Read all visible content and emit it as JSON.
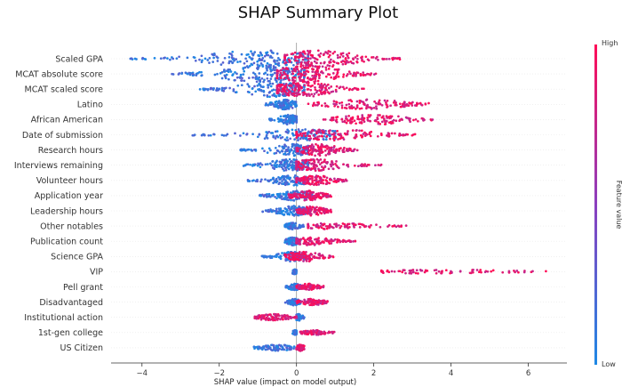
{
  "chart_data": {
    "type": "scatter",
    "subtype": "shap-beeswarm",
    "title": "SHAP Summary Plot",
    "xlabel": "SHAP value (impact on model output)",
    "xlim": [
      -4.8,
      7.0
    ],
    "xticks": [
      -4,
      -2,
      0,
      2,
      4,
      6
    ],
    "colorbar": {
      "label": "Feature value",
      "high": "High",
      "low": "Low"
    },
    "colors": {
      "low": "#1e88e5",
      "mid": "#8b3fbf",
      "high": "#ff0d57",
      "axis": "#333333",
      "zero": "#999999",
      "grid": "#e8e8e8"
    },
    "features": [
      {
        "name": "Scaled GPA",
        "low_range": [
          -4.3,
          0.3
        ],
        "high_range": [
          -0.3,
          2.7
        ],
        "low_peak": -0.9,
        "high_peak": 0.6,
        "spread": 9
      },
      {
        "name": "MCAT absolute score",
        "low_range": [
          -3.3,
          0.2
        ],
        "high_range": [
          -0.5,
          2.1
        ],
        "low_peak": -0.9,
        "high_peak": 0.3,
        "spread": 9
      },
      {
        "name": "MCAT scaled score",
        "low_range": [
          -2.5,
          0.2
        ],
        "high_range": [
          -0.5,
          1.8
        ],
        "low_peak": -0.6,
        "high_peak": 0.2,
        "spread": 8
      },
      {
        "name": "Latino",
        "low_range": [
          -0.8,
          0.0
        ],
        "high_range": [
          0.3,
          3.5
        ],
        "low_peak": -0.3,
        "high_peak": 1.8,
        "spread": 5
      },
      {
        "name": "African American",
        "low_range": [
          -0.7,
          0.0
        ],
        "high_range": [
          0.7,
          3.6
        ],
        "low_peak": -0.2,
        "high_peak": 2.0,
        "spread": 5
      },
      {
        "name": "Date of submission",
        "low_range": [
          -2.7,
          1.0
        ],
        "high_range": [
          0.0,
          3.1
        ],
        "low_peak": 0.1,
        "high_peak": 1.0,
        "spread": 6
      },
      {
        "name": "Research hours",
        "low_range": [
          -1.5,
          0.3
        ],
        "high_range": [
          0.0,
          1.6
        ],
        "low_peak": -0.1,
        "high_peak": 0.6,
        "spread": 6
      },
      {
        "name": "Interviews remaining",
        "low_range": [
          -1.4,
          0.3
        ],
        "high_range": [
          0.0,
          2.2
        ],
        "low_peak": -0.2,
        "high_peak": 0.5,
        "spread": 6
      },
      {
        "name": "Volunteer hours",
        "low_range": [
          -1.3,
          0.3
        ],
        "high_range": [
          0.0,
          1.3
        ],
        "low_peak": -0.1,
        "high_peak": 0.5,
        "spread": 5
      },
      {
        "name": "Application year",
        "low_range": [
          -1.0,
          0.4
        ],
        "high_range": [
          -0.2,
          0.9
        ],
        "low_peak": -0.1,
        "high_peak": 0.3,
        "spread": 5
      },
      {
        "name": "Leadership hours",
        "low_range": [
          -0.9,
          0.3
        ],
        "high_range": [
          0.0,
          0.9
        ],
        "low_peak": -0.1,
        "high_peak": 0.4,
        "spread": 5
      },
      {
        "name": "Other notables",
        "low_range": [
          -0.3,
          0.2
        ],
        "high_range": [
          0.3,
          2.9
        ],
        "low_peak": -0.1,
        "high_peak": 1.0,
        "spread": 3
      },
      {
        "name": "Publication count",
        "low_range": [
          -0.3,
          0.1
        ],
        "high_range": [
          0.0,
          1.6
        ],
        "low_peak": -0.1,
        "high_peak": 0.4,
        "spread": 4
      },
      {
        "name": "Science GPA",
        "low_range": [
          -0.9,
          0.2
        ],
        "high_range": [
          -0.3,
          1.0
        ],
        "low_peak": -0.1,
        "high_peak": 0.2,
        "spread": 5
      },
      {
        "name": "VIP",
        "low_range": [
          -0.1,
          0.0
        ],
        "high_range": [
          2.2,
          6.5
        ],
        "low_peak": -0.05,
        "high_peak": 3.8,
        "spread": 2
      },
      {
        "name": "Pell grant",
        "low_range": [
          -0.3,
          0.1
        ],
        "high_range": [
          0.0,
          0.7
        ],
        "low_peak": -0.05,
        "high_peak": 0.3,
        "spread": 3
      },
      {
        "name": "Disadvantaged",
        "low_range": [
          -0.3,
          0.1
        ],
        "high_range": [
          0.0,
          0.8
        ],
        "low_peak": -0.05,
        "high_peak": 0.4,
        "spread": 3
      },
      {
        "name": "Institutional action",
        "low_range": [
          0.0,
          0.2
        ],
        "high_range": [
          -1.2,
          0.0
        ],
        "low_peak": 0.05,
        "high_peak": -0.6,
        "spread": 3
      },
      {
        "name": "1st-gen college",
        "low_range": [
          -0.1,
          0.0
        ],
        "high_range": [
          0.1,
          1.0
        ],
        "low_peak": -0.03,
        "high_peak": 0.5,
        "spread": 2
      },
      {
        "name": "US Citizen",
        "low_range": [
          -1.1,
          0.1
        ],
        "high_range": [
          0.0,
          0.2
        ],
        "low_peak": -0.5,
        "high_peak": 0.1,
        "spread": 3
      }
    ]
  }
}
